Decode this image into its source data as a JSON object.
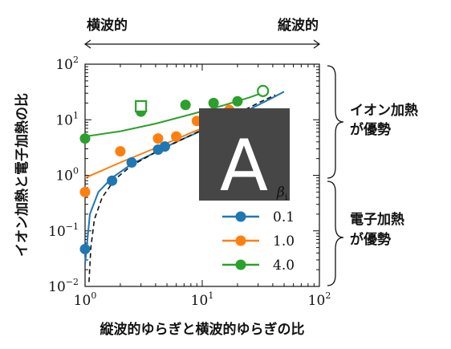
{
  "chart_data": {
    "type": "scatter",
    "xscale": "log",
    "yscale": "log",
    "xlim": [
      1,
      100
    ],
    "ylim": [
      0.01,
      100
    ],
    "xlabel": "縦波的ゆらぎと横波的ゆらぎの比",
    "ylabel": "イオン加熱と電子加熱の比",
    "x_ticks": [
      {
        "value": 1,
        "mant": "10",
        "exp": "0"
      },
      {
        "value": 10,
        "mant": "10",
        "exp": "1"
      },
      {
        "value": 100,
        "mant": "10",
        "exp": "2"
      }
    ],
    "y_ticks": [
      {
        "value": 0.01,
        "mant": "10",
        "exp": "−2"
      },
      {
        "value": 0.1,
        "mant": "10",
        "exp": "−1"
      },
      {
        "value": 1,
        "mant": "10",
        "exp": "0"
      },
      {
        "value": 10,
        "mant": "10",
        "exp": "1"
      },
      {
        "value": 100,
        "mant": "10",
        "exp": "2"
      }
    ],
    "top_axis": {
      "left_label": "横波的",
      "right_label": "縦波的"
    },
    "legend": {
      "title": "β",
      "title_sub": "i",
      "placement": "lower-right"
    },
    "series": [
      {
        "name": "0.1",
        "color": "#1f77b4",
        "points": [
          [
            1.0,
            0.047
          ],
          [
            1.7,
            0.8
          ],
          [
            2.5,
            1.7
          ],
          [
            4.2,
            2.9
          ],
          [
            4.8,
            3.3
          ]
        ],
        "fit": [
          [
            1.0,
            0.025
          ],
          [
            1.1,
            0.2
          ],
          [
            1.3,
            0.5
          ],
          [
            1.7,
            0.9
          ],
          [
            2.5,
            1.6
          ],
          [
            4,
            2.6
          ],
          [
            6,
            4
          ],
          [
            10,
            6.4
          ],
          [
            20,
            12
          ],
          [
            40,
            25
          ],
          [
            50,
            32
          ]
        ]
      },
      {
        "name": "1.0",
        "color": "#ff7f0e",
        "points": [
          [
            1.0,
            0.5
          ],
          [
            2.0,
            2.7
          ],
          [
            4.2,
            4.6
          ],
          [
            6.0,
            5.0
          ],
          [
            9.0,
            9.5
          ],
          [
            17.0,
            15.0
          ]
        ],
        "fit": [
          [
            1.0,
            0.9
          ],
          [
            2,
            1.7
          ],
          [
            4,
            3.1
          ],
          [
            8,
            5.8
          ],
          [
            15,
            10
          ],
          [
            20,
            13
          ]
        ]
      },
      {
        "name": "4.0",
        "color": "#2ca02c",
        "points": [
          [
            1.0,
            4.6
          ],
          [
            3.0,
            14.0
          ],
          [
            7.2,
            18.5
          ],
          [
            12.5,
            20.0
          ],
          [
            20.0,
            21.5
          ]
        ],
        "fit": [
          [
            1.0,
            5.0
          ],
          [
            2,
            6.2
          ],
          [
            4,
            8.5
          ],
          [
            8,
            12.5
          ],
          [
            15,
            18
          ],
          [
            25,
            25
          ],
          [
            35,
            32
          ]
        ]
      }
    ],
    "dashed_curve": [
      [
        1.08,
        0.012
      ],
      [
        1.12,
        0.05
      ],
      [
        1.2,
        0.16
      ],
      [
        1.4,
        0.4
      ],
      [
        1.8,
        0.85
      ],
      [
        2.5,
        1.5
      ],
      [
        4,
        2.6
      ],
      [
        7,
        4.6
      ],
      [
        12,
        8
      ],
      [
        20,
        13
      ],
      [
        30,
        20
      ],
      [
        42,
        28
      ]
    ],
    "open_markers": [
      {
        "shape": "square",
        "x": 3.0,
        "y": 17.5,
        "color": "#2ca02c"
      },
      {
        "shape": "circle",
        "x": 33.0,
        "y": 33.0,
        "color": "#2ca02c"
      }
    ]
  },
  "annotations": {
    "upper_bracket_label": [
      "イオン加熱",
      "が優勢"
    ],
    "lower_bracket_label": [
      "電子加熱",
      "が優勢"
    ]
  },
  "placeholder_tile": {
    "letter": "A",
    "color": "#464646"
  }
}
